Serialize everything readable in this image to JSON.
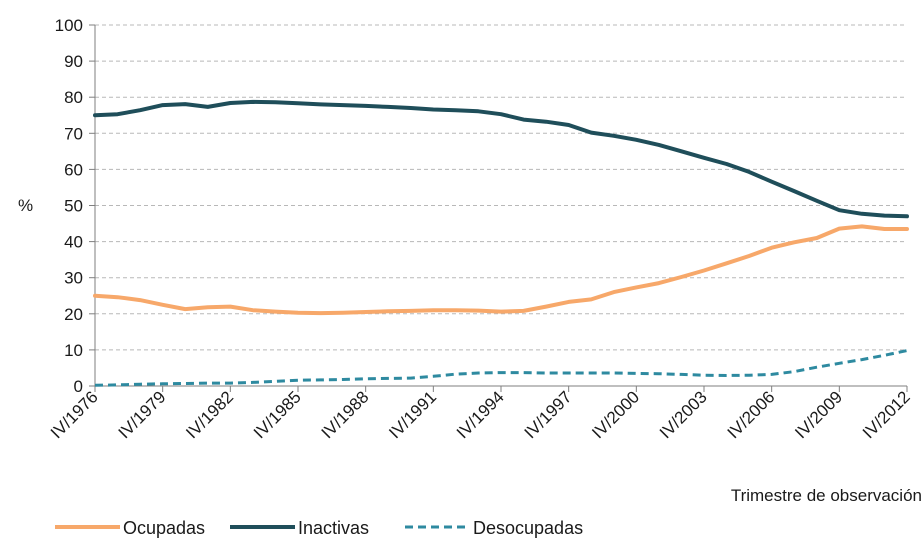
{
  "chart_data": {
    "type": "line",
    "title": "",
    "xlabel": "Trimestre de observación",
    "ylabel": "%",
    "ylim": [
      0,
      100
    ],
    "yticks": [
      0,
      10,
      20,
      30,
      40,
      50,
      60,
      70,
      80,
      90,
      100
    ],
    "xticks": [
      "IV/1976",
      "IV/1979",
      "IV/1982",
      "IV/1985",
      "IV/1988",
      "IV/1991",
      "IV/1994",
      "IV/1997",
      "IV/2000",
      "IV/2003",
      "IV/2006",
      "IV/2009",
      "IV/2012"
    ],
    "grid": true,
    "legend_position": "bottom",
    "x": [
      1976,
      1977,
      1978,
      1979,
      1980,
      1981,
      1982,
      1983,
      1984,
      1985,
      1986,
      1987,
      1988,
      1989,
      1990,
      1991,
      1992,
      1993,
      1994,
      1995,
      1996,
      1997,
      1998,
      1999,
      2000,
      2001,
      2002,
      2003,
      2004,
      2005,
      2006,
      2007,
      2008,
      2009,
      2010,
      2011,
      2012
    ],
    "series": [
      {
        "name": "Ocupadas",
        "color": "#f7a86a",
        "dash": "solid",
        "values": [
          25,
          24.6,
          23.8,
          22.5,
          21.3,
          21.8,
          22,
          21,
          20.6,
          20.3,
          20.2,
          20.3,
          20.5,
          20.7,
          20.8,
          21,
          21,
          20.9,
          20.6,
          20.8,
          22,
          23.3,
          24,
          26,
          27.3,
          28.5,
          30.2,
          32,
          34,
          36,
          38.3,
          39.8,
          41,
          43.6,
          44.2,
          43.5,
          43.5
        ]
      },
      {
        "name": "Inactivas",
        "color": "#1f4e5a",
        "dash": "solid",
        "values": [
          75,
          75.3,
          76.4,
          77.8,
          78.1,
          77.3,
          78.4,
          78.7,
          78.6,
          78.3,
          78,
          77.8,
          77.6,
          77.3,
          77,
          76.6,
          76.4,
          76.1,
          75.3,
          73.8,
          73.2,
          72.3,
          70.2,
          69.3,
          68.2,
          66.8,
          65,
          63.2,
          61.5,
          59.3,
          56.6,
          54,
          51.3,
          48.7,
          47.7,
          47.2,
          47
        ]
      },
      {
        "name": "Desocupadas",
        "color": "#2e8aa0",
        "dash": "dashed",
        "values": [
          0.2,
          0.3,
          0.5,
          0.6,
          0.7,
          0.8,
          0.8,
          1,
          1.3,
          1.6,
          1.7,
          1.8,
          2,
          2.1,
          2.2,
          2.7,
          3.3,
          3.6,
          3.7,
          3.7,
          3.6,
          3.6,
          3.6,
          3.6,
          3.5,
          3.4,
          3.2,
          3,
          2.9,
          3,
          3.2,
          4,
          5.2,
          6.3,
          7.3,
          8.5,
          9.8
        ]
      }
    ]
  }
}
